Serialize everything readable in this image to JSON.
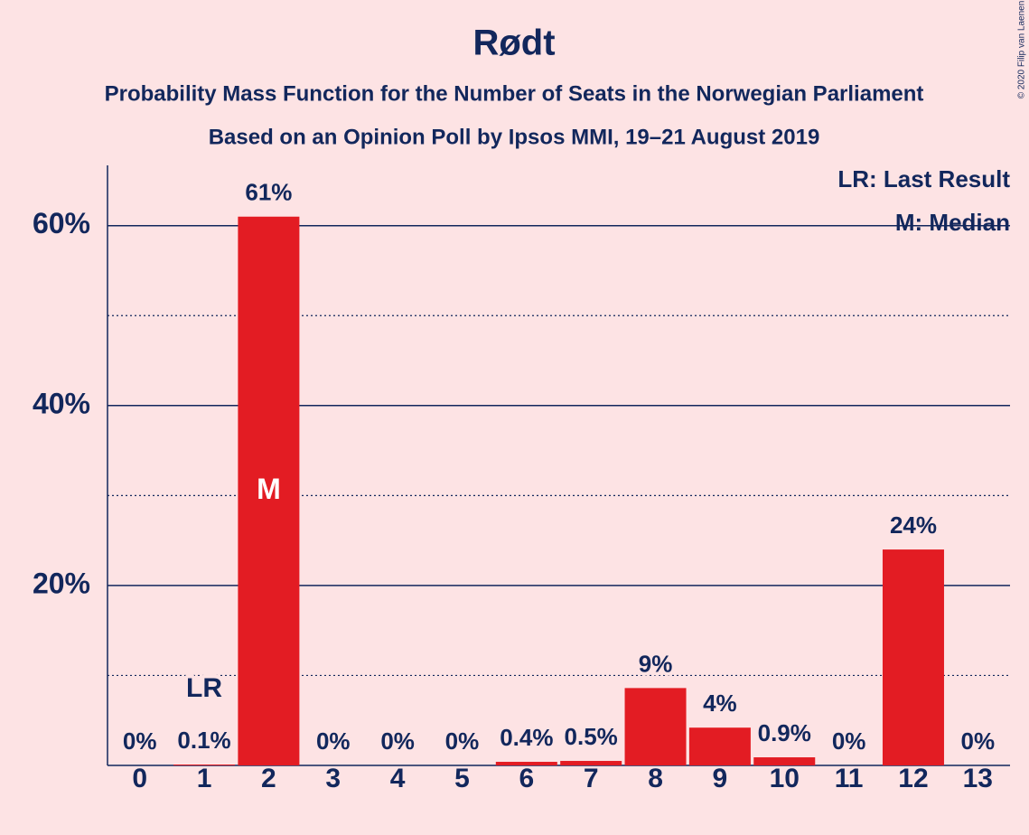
{
  "chart_data": {
    "type": "bar",
    "title": "Rødt",
    "subtitle": "Probability Mass Function for the Number of Seats in the Norwegian Parliament",
    "subtitle2": "Based on an Opinion Poll by Ipsos MMI, 19–21 August 2019",
    "copyright": "© 2020 Filip van Laenen",
    "categories": [
      "0",
      "1",
      "2",
      "3",
      "4",
      "5",
      "6",
      "7",
      "8",
      "9",
      "10",
      "11",
      "12",
      "13"
    ],
    "values": [
      0,
      0.1,
      61,
      0,
      0,
      0,
      0.4,
      0.5,
      8.6,
      4.2,
      0.9,
      0,
      24,
      0
    ],
    "value_labels": [
      "0%",
      "0.1%",
      "61%",
      "0%",
      "0%",
      "0%",
      "0.4%",
      "0.5%",
      "9%",
      "4%",
      "0.9%",
      "0%",
      "24%",
      "0%"
    ],
    "color": "#e31c23",
    "ylim": [
      0,
      66.7
    ],
    "yticks": [
      {
        "value": 20,
        "label": "20%"
      },
      {
        "value": 40,
        "label": "40%"
      },
      {
        "value": 60,
        "label": "60%"
      }
    ],
    "minor_yticks": [
      10,
      30,
      50
    ],
    "grid": true,
    "last_result": 1,
    "last_result_label": "LR",
    "median": 2,
    "median_label": "M",
    "legend": [
      "LR: Last Result",
      "M: Median"
    ]
  }
}
